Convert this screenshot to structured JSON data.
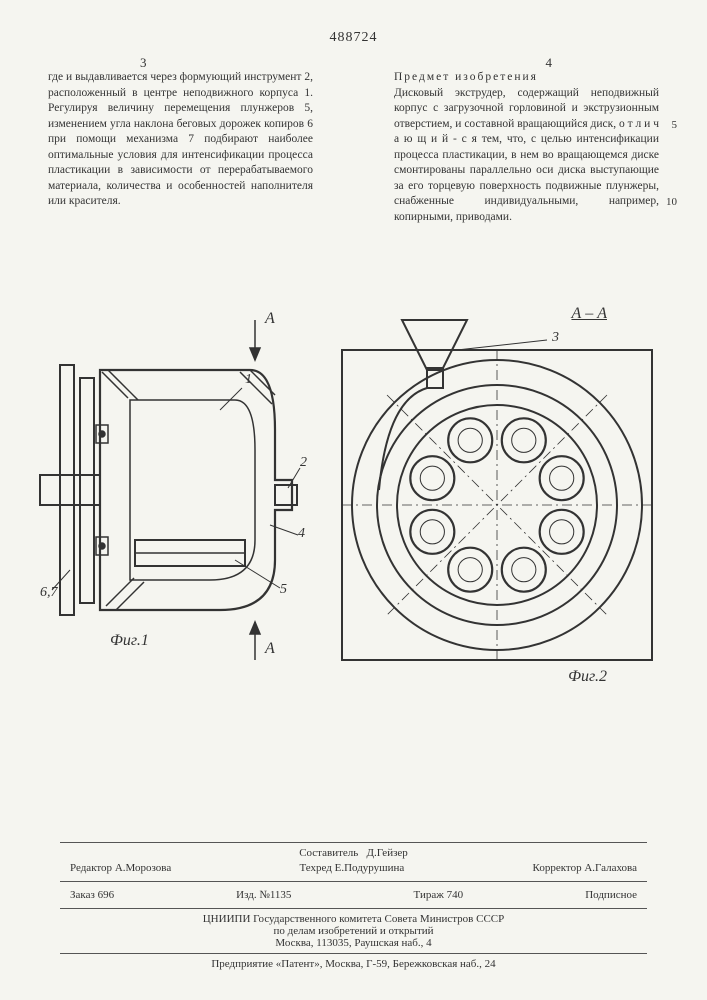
{
  "patent_number": "488724",
  "col_left_num": "3",
  "col_right_num": "4",
  "line_marker_5": "5",
  "line_marker_10": "10",
  "left_text": "где и выдавливается через формующий инструмент 2, расположенный в центре неподвижного корпуса 1. Регулируя величину перемещения плунжеров 5, изменением угла наклона беговых дорожек копиров 6 при помощи механизма 7 подбирают наиболее оптимальные условия для интенсификации процесса пластикации в зависимости от перерабатываемого материала, количества и особенностей наполнителя или красителя.",
  "right_heading": "Предмет изобретения",
  "right_text": "Дисковый экструдер, содержащий неподвижный корпус с загрузочной горловиной и экструзионным отверстием, и составной вращающийся диск, о т л и ч а ю щ и й - с я  тем, что, с целью интенсификации процесса пластикации, в нем во вращающемся диске смонтированы параллельно оси диска выступающие за его торцевую поверхность подвижные плунжеры, снабженные индивидуальными, например, копирными, приводами.",
  "fig1_label": "Фиг.1",
  "fig2_label": "Фиг.2",
  "section_label_top": "А",
  "section_label_bot": "А",
  "section_AA": "А – А",
  "callouts_fig1": {
    "c1": "1",
    "c2": "2",
    "c4": "4",
    "c5": "5",
    "c67": "6,7"
  },
  "callouts_fig2": {
    "c3": "3"
  },
  "footer": {
    "compiler_label": "Составитель",
    "compiler": "Д.Гейзер",
    "editor_label": "Редактор",
    "editor": "А.Морозова",
    "tech_label": "Техред",
    "tech": "Е.Подурушина",
    "corrector_label": "Корректор",
    "corrector": "А.Галахова",
    "order_label": "Заказ",
    "order": "696",
    "izd_label": "Изд. №",
    "izd": "1135",
    "tirazh_label": "Тираж",
    "tirazh": "740",
    "sub": "Подписное",
    "org1": "ЦНИИПИ Государственного комитета Совета Министров СССР",
    "org2": "по делам изобретений и открытий",
    "addr1": "Москва, 113035, Раушская наб., 4",
    "addr2": "Предприятие «Патент», Москва, Г-59, Бережковская наб., 24"
  },
  "diagram": {
    "stroke": "#333333",
    "fill_hatch": "#888888",
    "bg": "#f5f5f0",
    "line_width_thin": 1,
    "line_width_thick": 2.2,
    "fig2_plungers": 8,
    "fig2_outer_r": 140,
    "fig2_mid_r": 110,
    "fig2_plunger_ring_r": 70,
    "fig2_plunger_r": 22
  }
}
